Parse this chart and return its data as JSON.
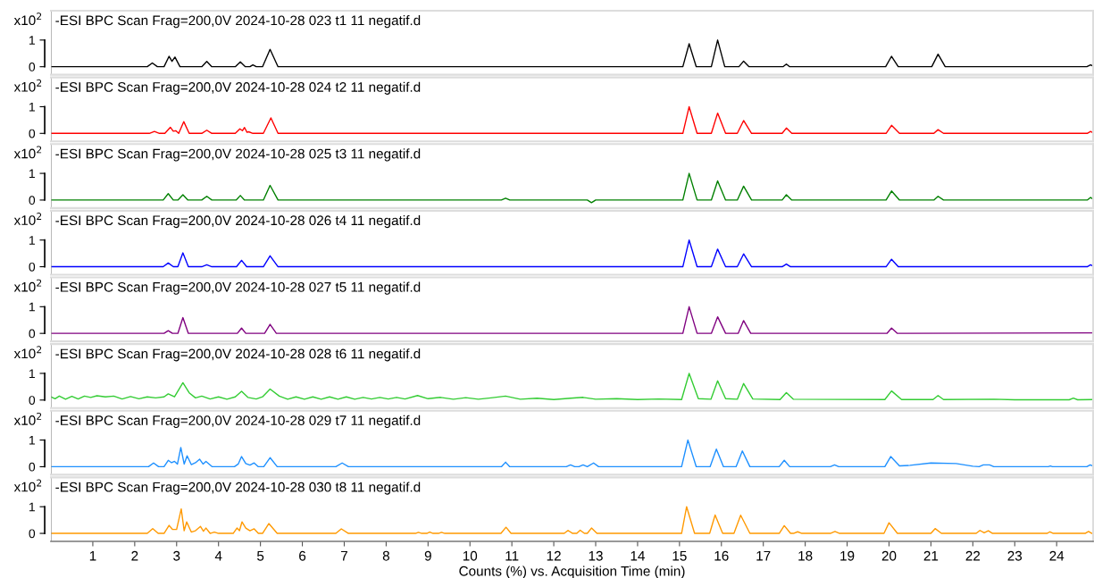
{
  "chart_data": [
    {
      "type": "line",
      "title": "-ESI BPC Scan Frag=200,0V 2024-10-28 023 t1 11 negatif.d",
      "ylabel": "x10$^{2}$",
      "xlim": [
        0,
        24.87
      ],
      "ylim": [
        -0.3,
        2.1
      ],
      "yticks": [
        0,
        1
      ],
      "tick_labels": "y",
      "x": [
        0,
        2.3,
        2.42,
        2.54,
        2.7,
        2.82,
        2.89,
        2.96,
        3.08,
        3.6,
        3.72,
        3.84,
        4.4,
        4.52,
        4.64,
        4.75,
        4.82,
        4.9,
        5.05,
        5.23,
        5.42,
        15.08,
        15.23,
        15.4,
        15.76,
        15.91,
        16.08,
        16.42,
        16.53,
        16.66,
        17.47,
        17.55,
        17.63,
        19.92,
        20.06,
        20.22,
        21.02,
        21.17,
        21.34,
        24.72,
        24.81,
        24.87
      ],
      "series": [
        {
          "color": "#000000",
          "values": [
            0,
            0,
            0.14,
            0,
            0,
            0.39,
            0.2,
            0.36,
            0,
            0,
            0.2,
            0,
            0,
            0.18,
            0,
            0,
            0.07,
            0,
            0,
            0.65,
            0,
            0,
            0.86,
            0,
            0,
            1.0,
            0,
            0,
            0.21,
            0,
            0,
            0.1,
            0,
            0,
            0.39,
            0,
            0,
            0.47,
            0,
            0,
            0.07,
            0.02
          ]
        }
      ]
    },
    {
      "type": "line",
      "title": "-ESI BPC Scan Frag=200,0V 2024-10-28 024 t2 11 negatif.d",
      "ylabel": "x10$^{2}$",
      "xlim": [
        0,
        24.87
      ],
      "ylim": [
        -0.3,
        2.1
      ],
      "yticks": [
        0,
        1
      ],
      "tick_labels": "y",
      "x": [
        0,
        2.35,
        2.47,
        2.59,
        2.72,
        2.85,
        2.92,
        2.98,
        3.05,
        3.17,
        3.3,
        3.6,
        3.72,
        3.84,
        4.4,
        4.51,
        4.57,
        4.62,
        4.68,
        4.72,
        4.82,
        5.07,
        5.25,
        5.42,
        15.08,
        15.23,
        15.42,
        15.76,
        15.91,
        16.1,
        16.38,
        16.53,
        16.72,
        17.45,
        17.55,
        17.68,
        19.93,
        20.06,
        20.25,
        21.07,
        21.17,
        21.3,
        24.73,
        24.81,
        24.87
      ],
      "series": [
        {
          "color": "#ff0000",
          "values": [
            0,
            0,
            0.07,
            0,
            0,
            0.23,
            0.08,
            0.1,
            0,
            0.44,
            0,
            0,
            0.12,
            0,
            0,
            0.17,
            0.1,
            0.22,
            0.04,
            0.06,
            0,
            0,
            0.58,
            0,
            0,
            1.0,
            0,
            0,
            0.76,
            0,
            0,
            0.48,
            0,
            0,
            0.2,
            0,
            0,
            0.3,
            0,
            0,
            0.14,
            0,
            0,
            0.07,
            0.02
          ]
        }
      ]
    },
    {
      "type": "line",
      "title": "-ESI BPC Scan Frag=200,0V 2024-10-28 025 t3 11 negatif.d",
      "ylabel": "x10$^{2}$",
      "xlim": [
        0,
        24.87
      ],
      "ylim": [
        -0.3,
        2.1
      ],
      "yticks": [
        0,
        1
      ],
      "tick_labels": "y",
      "x": [
        0,
        2.68,
        2.8,
        2.92,
        3.03,
        3.15,
        3.27,
        3.6,
        3.72,
        3.84,
        4.42,
        4.52,
        4.62,
        5.07,
        5.23,
        5.42,
        10.75,
        10.85,
        10.95,
        12.8,
        12.9,
        13.0,
        15.08,
        15.23,
        15.42,
        15.76,
        15.91,
        16.1,
        16.38,
        16.53,
        16.72,
        17.45,
        17.55,
        17.68,
        19.93,
        20.06,
        20.25,
        21.07,
        21.17,
        21.3,
        24.73,
        24.81,
        24.87
      ],
      "series": [
        {
          "color": "#008000",
          "values": [
            0,
            0,
            0.24,
            0,
            0,
            0.2,
            0,
            0,
            0.14,
            0,
            0,
            0.17,
            0,
            0,
            0.55,
            0,
            0,
            0.07,
            0,
            0,
            -0.1,
            0,
            0,
            1.0,
            0,
            0,
            0.72,
            0,
            0,
            0.52,
            0,
            0,
            0.2,
            0,
            0,
            0.34,
            0,
            0,
            0.14,
            0,
            0,
            0.1,
            0.03
          ]
        }
      ]
    },
    {
      "type": "line",
      "title": "-ESI BPC Scan Frag=200,0V 2024-10-28 026 t4 11 negatif.d",
      "ylabel": "x10$^{2}$",
      "xlim": [
        0,
        24.87
      ],
      "ylim": [
        -0.3,
        2.1
      ],
      "yticks": [
        0,
        1
      ],
      "tick_labels": "y",
      "x": [
        0,
        2.68,
        2.8,
        2.92,
        3.03,
        3.15,
        3.28,
        3.6,
        3.72,
        3.84,
        4.43,
        4.55,
        4.67,
        5.07,
        5.23,
        5.42,
        15.08,
        15.23,
        15.42,
        15.76,
        15.91,
        16.1,
        16.38,
        16.53,
        16.72,
        17.45,
        17.55,
        17.65,
        19.93,
        20.06,
        20.22,
        24.73,
        24.81,
        24.87
      ],
      "series": [
        {
          "color": "#0000ff",
          "values": [
            0,
            0,
            0.14,
            0,
            0,
            0.52,
            0,
            0,
            0.07,
            0,
            0,
            0.24,
            0,
            0,
            0.41,
            0,
            0,
            1.0,
            0,
            0,
            0.66,
            0,
            0,
            0.48,
            0,
            0,
            0.1,
            0,
            0,
            0.28,
            0,
            0,
            0.07,
            0.02
          ]
        }
      ]
    },
    {
      "type": "line",
      "title": "-ESI BPC Scan Frag=200,0V 2024-10-28 027 t5 11 negatif.d",
      "ylabel": "x10$^{2}$",
      "xlim": [
        0,
        24.87
      ],
      "ylim": [
        -0.3,
        2.1
      ],
      "yticks": [
        0,
        1
      ],
      "tick_labels": "y",
      "x": [
        0,
        2.7,
        2.8,
        2.9,
        3.03,
        3.15,
        3.28,
        4.45,
        4.55,
        4.65,
        5.1,
        5.23,
        5.38,
        15.08,
        15.23,
        15.42,
        15.76,
        15.91,
        16.1,
        16.4,
        16.53,
        16.7,
        19.95,
        20.06,
        20.2,
        24.87
      ],
      "series": [
        {
          "color": "#800080",
          "values": [
            0,
            0,
            0.1,
            0,
            0,
            0.59,
            0,
            0,
            0.2,
            0,
            0,
            0.34,
            0,
            0,
            1.0,
            0,
            0,
            0.62,
            0,
            0,
            0.48,
            0,
            0,
            0.2,
            0,
            0.02
          ]
        }
      ]
    },
    {
      "type": "line",
      "title": "-ESI BPC Scan Frag=200,0V 2024-10-28 028 t6 11 negatif.d",
      "ylabel": "x10$^{2}$",
      "xlim": [
        0,
        24.87
      ],
      "ylim": [
        -0.3,
        2.1
      ],
      "yticks": [
        0,
        1
      ],
      "tick_labels": "y",
      "x": [
        0,
        0.1,
        0.2,
        0.35,
        0.5,
        0.65,
        0.8,
        0.95,
        1.1,
        1.3,
        1.5,
        1.7,
        1.9,
        2.1,
        2.3,
        2.5,
        2.7,
        2.8,
        2.95,
        3.15,
        3.3,
        3.45,
        3.6,
        3.8,
        4.0,
        4.2,
        4.4,
        4.55,
        4.7,
        4.9,
        5.05,
        5.23,
        5.45,
        5.65,
        5.85,
        6.05,
        6.25,
        6.45,
        6.65,
        6.85,
        7.05,
        7.25,
        7.45,
        7.65,
        7.85,
        8.05,
        8.25,
        8.45,
        8.75,
        9.0,
        9.3,
        9.6,
        9.9,
        10.2,
        10.5,
        10.85,
        11.2,
        11.6,
        12.0,
        12.4,
        12.7,
        13.0,
        13.5,
        14.0,
        14.5,
        15.05,
        15.23,
        15.45,
        15.75,
        15.91,
        16.1,
        16.38,
        16.53,
        16.75,
        17.4,
        17.55,
        17.72,
        19.9,
        20.06,
        20.3,
        21.05,
        21.17,
        21.3,
        22.5,
        23.0,
        24.3,
        24.4,
        24.5,
        24.87
      ],
      "series": [
        {
          "color": "#33cc33",
          "values": [
            0.12,
            0.05,
            0.15,
            0.03,
            0.14,
            0.04,
            0.15,
            0.1,
            0.16,
            0.12,
            0.15,
            0.04,
            0.13,
            0.05,
            0.12,
            0.08,
            0.12,
            0.23,
            0.12,
            0.65,
            0.27,
            0.08,
            0.15,
            0.04,
            0.12,
            0.03,
            0.12,
            0.33,
            0.1,
            0.04,
            0.12,
            0.41,
            0.15,
            0.03,
            0.12,
            0.03,
            0.12,
            0.03,
            0.12,
            0.03,
            0.12,
            0.03,
            0.1,
            0.04,
            0.1,
            0.04,
            0.1,
            0.04,
            0.17,
            0.05,
            0.1,
            0.03,
            0.09,
            0.03,
            0.08,
            0.15,
            0.03,
            0.07,
            0.02,
            0.07,
            0.1,
            0.03,
            0.05,
            0.02,
            0.04,
            0.02,
            1.0,
            0.05,
            0.03,
            0.72,
            0.05,
            0.03,
            0.62,
            0.04,
            0.02,
            0.28,
            0.03,
            0.02,
            0.34,
            0.02,
            0.02,
            0.17,
            0.02,
            0.03,
            0.01,
            0.01,
            0.07,
            0.01,
            0.02
          ]
        }
      ]
    },
    {
      "type": "line",
      "title": "-ESI BPC Scan Frag=200,0V 2024-10-28 029 t7 11 negatif.d",
      "ylabel": "x10$^{2}$",
      "xlim": [
        0,
        24.87
      ],
      "ylim": [
        -0.3,
        2.1
      ],
      "yticks": [
        0,
        1
      ],
      "tick_labels": "y",
      "x": [
        0,
        2.33,
        2.45,
        2.57,
        2.7,
        2.8,
        2.88,
        2.95,
        3.02,
        3.1,
        3.18,
        3.25,
        3.35,
        3.45,
        3.55,
        3.63,
        3.7,
        3.85,
        4.38,
        4.47,
        4.55,
        4.65,
        4.75,
        4.85,
        4.95,
        5.08,
        5.23,
        5.4,
        6.8,
        6.95,
        7.1,
        10.75,
        10.85,
        10.95,
        12.3,
        12.4,
        12.5,
        12.6,
        12.7,
        12.8,
        12.95,
        13.07,
        15.05,
        15.2,
        15.4,
        15.73,
        15.88,
        16.05,
        16.35,
        16.5,
        16.68,
        17.38,
        17.5,
        17.63,
        18.6,
        18.7,
        18.8,
        19.9,
        20.04,
        20.25,
        20.5,
        21.0,
        21.6,
        22.0,
        22.15,
        22.25,
        22.4,
        22.5,
        23.8,
        23.85,
        23.9,
        24.72,
        24.8,
        24.87
      ],
      "series": [
        {
          "color": "#1e90ff",
          "values": [
            0,
            0,
            0.14,
            0,
            0,
            0.24,
            0.15,
            0.2,
            0.1,
            0.72,
            0.1,
            0.41,
            0.08,
            0.15,
            0.28,
            0.1,
            0.2,
            0,
            0,
            0.1,
            0.38,
            0.12,
            0.06,
            0.14,
            0,
            0,
            0.34,
            0,
            0,
            0.14,
            0,
            0,
            0.17,
            0,
            0,
            0.07,
            0,
            0,
            0.07,
            0,
            0.14,
            0,
            0,
            1.0,
            0,
            0,
            0.66,
            0,
            0,
            0.59,
            0,
            0,
            0.24,
            0,
            0,
            0.07,
            0,
            0,
            0.38,
            0.03,
            0.05,
            0.14,
            0.12,
            0.02,
            0,
            0.07,
            0.07,
            0,
            0,
            0.03,
            0,
            0,
            0.07,
            0.02
          ]
        }
      ]
    },
    {
      "type": "line",
      "title": "-ESI BPC Scan Frag=200,0V 2024-10-28 030 t8 11 negatif.d",
      "ylabel": "x10$^{2}$",
      "xlabel": "Counts (%) vs. Acquisition Time (min)",
      "xlim": [
        0,
        24.87
      ],
      "ylim": [
        -0.3,
        2.1
      ],
      "yticks": [
        0,
        1
      ],
      "xticks": [
        1,
        2,
        3,
        4,
        5,
        6,
        7,
        8,
        9,
        10,
        11,
        12,
        13,
        14,
        15,
        16,
        17,
        18,
        19,
        20,
        21,
        22,
        23,
        24
      ],
      "x": [
        0,
        2.3,
        2.43,
        2.56,
        2.7,
        2.82,
        2.9,
        3.0,
        3.11,
        3.18,
        3.24,
        3.35,
        3.45,
        3.57,
        3.64,
        3.7,
        3.8,
        3.9,
        4.0,
        4.35,
        4.44,
        4.5,
        4.56,
        4.65,
        4.75,
        4.85,
        4.95,
        5.05,
        5.2,
        5.4,
        6.8,
        6.93,
        7.1,
        8.7,
        8.77,
        8.85,
        8.97,
        9.04,
        9.12,
        9.25,
        9.32,
        9.4,
        10.74,
        10.86,
        10.98,
        12.25,
        12.34,
        12.45,
        12.55,
        12.63,
        12.73,
        12.8,
        12.9,
        13.03,
        15.05,
        15.17,
        15.36,
        15.72,
        15.85,
        16.03,
        16.3,
        16.46,
        16.68,
        17.38,
        17.5,
        17.65,
        17.72,
        17.82,
        17.92,
        18.6,
        18.71,
        18.82,
        19.88,
        20.0,
        20.2,
        21.0,
        21.1,
        21.25,
        22.08,
        22.17,
        22.27,
        22.37,
        22.47,
        23.77,
        23.84,
        23.92,
        24.68,
        24.76,
        24.84,
        24.87
      ],
      "series": [
        {
          "color": "#ff9900",
          "values": [
            0,
            0,
            0.18,
            0,
            0,
            0.3,
            0.15,
            0.15,
            0.92,
            0.1,
            0.43,
            0.05,
            0.1,
            0.26,
            0.08,
            0.2,
            0,
            0.05,
            0,
            0,
            0.2,
            0.1,
            0.43,
            0.2,
            0.1,
            0.17,
            0,
            0,
            0.37,
            0,
            0,
            0.17,
            0,
            0,
            0.04,
            0,
            0,
            0.05,
            0,
            0,
            0.04,
            0,
            0,
            0.23,
            0,
            0,
            0.11,
            0,
            0,
            0.12,
            0,
            0,
            0.2,
            0,
            0,
            1.0,
            0,
            0,
            0.69,
            0,
            0,
            0.68,
            0,
            0,
            0.29,
            0,
            0,
            0.06,
            0,
            0,
            0.07,
            0,
            0,
            0.4,
            0,
            0,
            0.18,
            0,
            0,
            0.11,
            0.02,
            0.1,
            0,
            0,
            0.06,
            0,
            0,
            0.07,
            0,
            0.02
          ]
        }
      ]
    }
  ]
}
